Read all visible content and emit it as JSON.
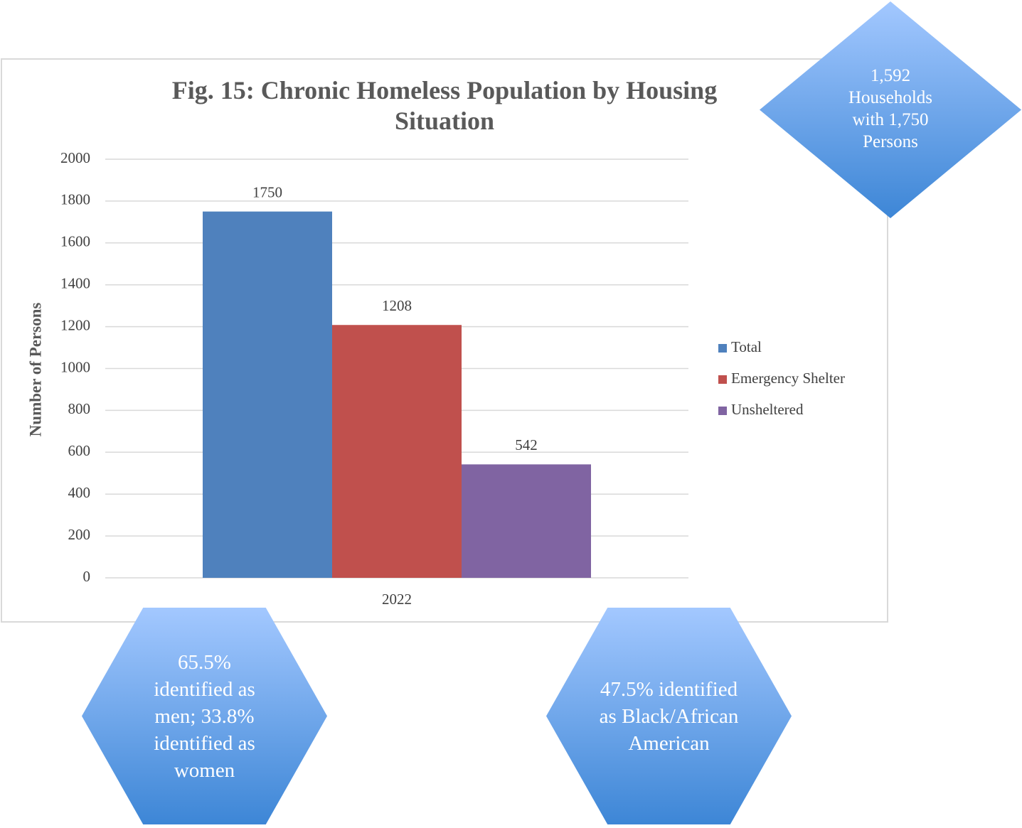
{
  "chart_data": {
    "type": "bar",
    "title": "Fig. 15: Chronic Homeless Population by Housing Situation",
    "y_label": "Number of Persons",
    "categories": [
      "2022"
    ],
    "series": [
      {
        "name": "Total",
        "color": "#4f81bd",
        "values": [
          1750
        ]
      },
      {
        "name": "Emergency Shelter",
        "color": "#c0504d",
        "values": [
          1208
        ]
      },
      {
        "name": "Unsheltered",
        "color": "#8064a2",
        "values": [
          542
        ]
      }
    ],
    "ylim": [
      0,
      2000
    ],
    "yticks": [
      0,
      200,
      400,
      600,
      800,
      1000,
      1200,
      1400,
      1600,
      1800,
      2000
    ],
    "grid": true,
    "legend": "right",
    "annotations": [
      "1,592 Households with 1,750 Persons",
      "65.5% identified as men; 33.8% identified as women",
      "47.5% identified as Black/African American"
    ]
  }
}
